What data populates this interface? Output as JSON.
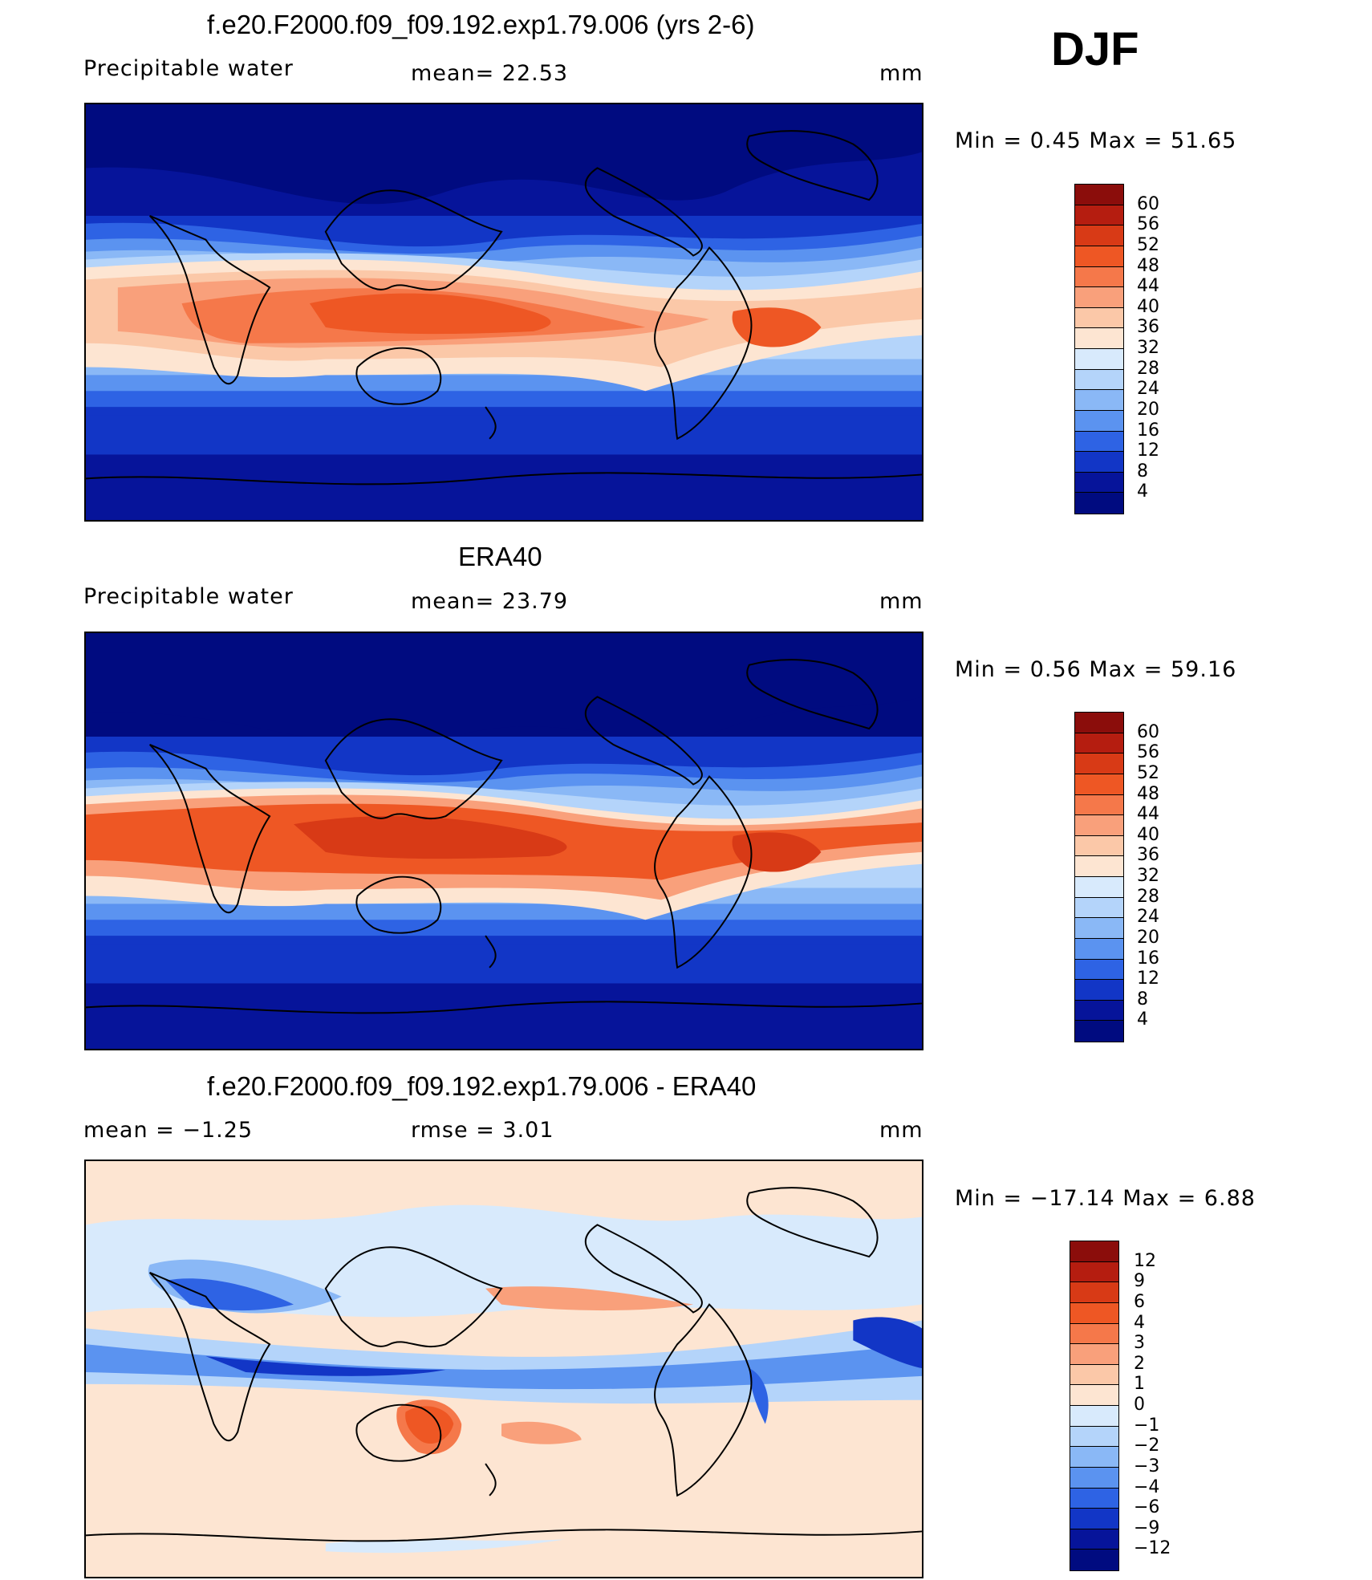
{
  "season": "DJF",
  "panels": [
    {
      "title": "f.e20.F2000.f09_f09.192.exp1.79.006 (yrs 2-6)",
      "left_label": "Precipitable  water",
      "center_label": "mean=   22.53",
      "units": "mm",
      "min_max": "Min  =     0.45  Max  =     51.65",
      "colorbar_labels": [
        "60",
        "56",
        "52",
        "48",
        "44",
        "40",
        "36",
        "32",
        "28",
        "24",
        "20",
        "16",
        "12",
        "8",
        "4"
      ]
    },
    {
      "title": "ERA40",
      "left_label": "Precipitable  water",
      "center_label": "mean=   23.79",
      "units": "mm",
      "min_max": "Min  =     0.56  Max  =     59.16",
      "colorbar_labels": [
        "60",
        "56",
        "52",
        "48",
        "44",
        "40",
        "36",
        "32",
        "28",
        "24",
        "20",
        "16",
        "12",
        "8",
        "4"
      ]
    },
    {
      "title": "f.e20.F2000.f09_f09.192.exp1.79.006 - ERA40",
      "left_label": "mean  =    −1.25",
      "center_label": "rmse  =     3.01",
      "units": "mm",
      "min_max": "Min  = −17.14  Max  =      6.88",
      "colorbar_labels": [
        "12",
        "9",
        "6",
        "4",
        "3",
        "2",
        "1",
        "0",
        "−1",
        "−2",
        "−3",
        "−4",
        "−6",
        "−9",
        "−12"
      ]
    }
  ],
  "colorbar_colors": {
    "pw": [
      "#8b0d0b",
      "#b51d10",
      "#d83a16",
      "#ee5724",
      "#f5784a",
      "#f9a07b",
      "#fbc8a8",
      "#fde5d2",
      "#d8eafc",
      "#b4d4fa",
      "#8ab8f6",
      "#5b93f0",
      "#2e63e4",
      "#1236c6",
      "#06149a",
      "#000b80"
    ],
    "diff": [
      "#8b0d0b",
      "#b51d10",
      "#d83a16",
      "#ee5724",
      "#f5784a",
      "#f9a07b",
      "#fbc8a8",
      "#fde5d2",
      "#d8eafc",
      "#b4d4fa",
      "#8ab8f6",
      "#5b93f0",
      "#2e63e4",
      "#1236c6",
      "#06149a",
      "#000b80"
    ]
  }
}
